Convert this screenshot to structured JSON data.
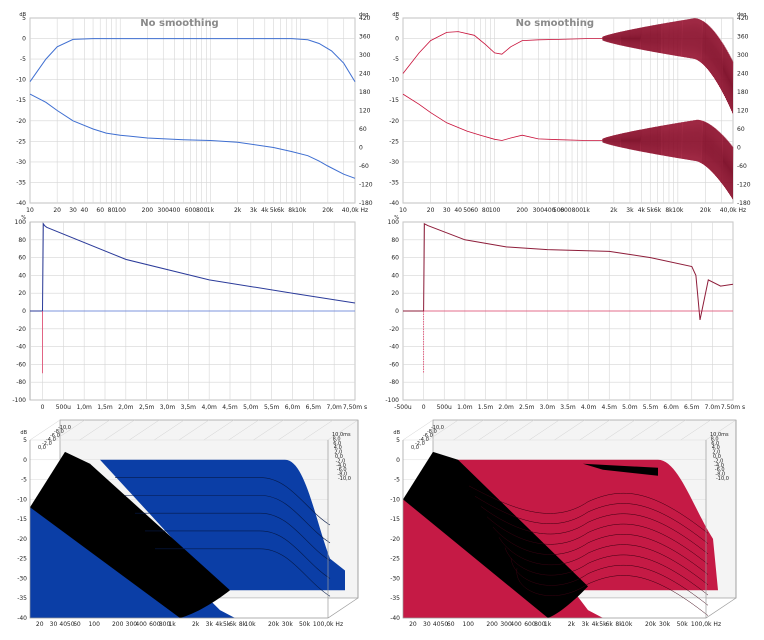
{
  "chart_data": [
    {
      "type": "line",
      "title": "No smoothing",
      "y_unit": "dB",
      "y2_unit": "deg",
      "x_axis_suffix": "Hz",
      "ylim": [
        -40,
        5
      ],
      "y2lim": [
        -180,
        420
      ],
      "x_scale": "log",
      "grid": true,
      "x_ticks": [
        "10",
        "20",
        "30",
        "40",
        "60",
        "80",
        "100",
        "200",
        "300",
        "400",
        "600",
        "800",
        "1k",
        "2k",
        "3k",
        "4k",
        "5k",
        "6k",
        "8k",
        "10k",
        "20k",
        "40,0k"
      ],
      "y_ticks": [
        "5",
        "0",
        "-5",
        "-10",
        "-15",
        "-20",
        "-25",
        "-30",
        "-35",
        "-40"
      ],
      "y2_ticks": [
        "420",
        "360",
        "300",
        "240",
        "180",
        "120",
        "60",
        "0",
        "-60",
        "-120",
        "-180"
      ],
      "color": "#3f6fd1",
      "series": [
        {
          "x": [
            10,
            15,
            20,
            30,
            50,
            100,
            1000,
            8000,
            12000,
            16000,
            22000,
            30000,
            40000
          ],
          "y": [
            -10.5,
            -5,
            -2,
            -0.2,
            0,
            0,
            0,
            0,
            -0.3,
            -1.2,
            -3,
            -6,
            -10.5
          ]
        },
        {
          "x": [
            10,
            15,
            20,
            30,
            50,
            70,
            100,
            200,
            500,
            1000,
            2000,
            5000,
            8000,
            12000,
            16000,
            20000,
            30000,
            40000
          ],
          "y": [
            -13.5,
            -15.5,
            -17.5,
            -20,
            -22,
            -23,
            -23.5,
            -24.2,
            -24.6,
            -24.8,
            -25.2,
            -26.5,
            -27.5,
            -28.5,
            -29.8,
            -31,
            -33,
            -34
          ]
        }
      ]
    },
    {
      "type": "line",
      "title": "No smoothing",
      "y_unit": "dB",
      "y2_unit": "deg",
      "x_axis_suffix": "Hz",
      "ylim": [
        -40,
        5
      ],
      "y2lim": [
        -180,
        420
      ],
      "x_scale": "log",
      "grid": true,
      "x_ticks": [
        "10",
        "20",
        "30",
        "40",
        "50",
        "60",
        "80",
        "100",
        "200",
        "300",
        "400",
        "500",
        "600",
        "800",
        "1k",
        "2k",
        "3k",
        "4k",
        "5k",
        "6k",
        "8k",
        "10k",
        "20k",
        "40,0k"
      ],
      "y_ticks": [
        "5",
        "0",
        "-5",
        "-10",
        "-15",
        "-20",
        "-25",
        "-30",
        "-35",
        "-40"
      ],
      "y2_ticks": [
        "420",
        "360",
        "300",
        "240",
        "180",
        "120",
        "60",
        "0",
        "-60",
        "-120",
        "-180"
      ],
      "color": "#c8113a",
      "series": [
        {
          "x": [
            10,
            15,
            20,
            30,
            40,
            60,
            80,
            100,
            120,
            150,
            200,
            300,
            500,
            1000,
            1500
          ],
          "y": [
            -8.5,
            -3.5,
            -0.5,
            1.5,
            1.7,
            0.8,
            -1.5,
            -3.5,
            -3.8,
            -2,
            -0.5,
            -0.3,
            -0.2,
            0,
            0
          ]
        },
        {
          "x": [
            10,
            15,
            20,
            30,
            50,
            70,
            100,
            120,
            150,
            200,
            300,
            500,
            1000,
            1500
          ],
          "y": [
            -13.5,
            -16,
            -18,
            -20.5,
            -22.5,
            -23.5,
            -24.5,
            -24.8,
            -24.2,
            -23.5,
            -24.4,
            -24.6,
            -24.8,
            -24.8
          ]
        }
      ]
    },
    {
      "type": "line",
      "title": "",
      "y_unit": "%",
      "ylim": [
        -100,
        100
      ],
      "grid": true,
      "x_ticks": [
        "0",
        "500u",
        "1,0m",
        "1,5m",
        "2,0m",
        "2,5m",
        "3,0m",
        "3,5m",
        "4,0m",
        "4,5m",
        "5,0m",
        "5,5m",
        "6,0m",
        "6,5m",
        "7,0m",
        "7,50m s"
      ],
      "y_ticks": [
        "100",
        "80",
        "60",
        "40",
        "20",
        "0",
        "-20",
        "-40",
        "-60",
        "-80",
        "-100"
      ],
      "color": "#2b3b9a",
      "series": [
        {
          "x": [
            -0.0003,
            0,
            2e-05,
            5e-05,
            0.0001,
            0.002,
            0.004,
            0.006,
            0.0075
          ],
          "y": [
            0,
            0,
            98,
            96,
            94,
            58,
            35,
            20,
            9
          ]
        }
      ]
    },
    {
      "type": "line",
      "title": "",
      "y_unit": "%",
      "ylim": [
        -100,
        100
      ],
      "grid": true,
      "x_ticks": [
        "-500u",
        "0",
        "500u",
        "1.0m",
        "1.5m",
        "2.0m",
        "2.5m",
        "3.0m",
        "3.5m",
        "4.0m",
        "4.5m",
        "5.0m",
        "5.5m",
        "6.0m",
        "6.5m",
        "7.0m",
        "7.50m s"
      ],
      "y_ticks": [
        "100",
        "80",
        "60",
        "40",
        "20",
        "0",
        "-20",
        "-40",
        "-60",
        "-80",
        "-100"
      ],
      "color": "#8e1d3a",
      "series": [
        {
          "x": [
            -0.0005,
            0,
            2e-05,
            0.0001,
            0.001,
            0.002,
            0.003,
            0.0045,
            0.0055,
            0.0065,
            0.0066,
            0.0067,
            0.0069,
            0.0072,
            0.0075
          ],
          "y": [
            0,
            0,
            98,
            96,
            80,
            72,
            69,
            67,
            60,
            50,
            40,
            -10,
            35,
            28,
            30
          ]
        }
      ]
    },
    {
      "type": "area",
      "title": "",
      "y_unit": "dB",
      "x_axis_suffix": "Hz",
      "ylim": [
        -40,
        5
      ],
      "grid": true,
      "x_ticks": [
        "20",
        "30",
        "40",
        "50",
        "60",
        "100",
        "200",
        "300",
        "400",
        "600",
        "800",
        "1k",
        "2k",
        "3k",
        "4k",
        "5k",
        "6k",
        "8k",
        "10k",
        "20k",
        "30k",
        "50k",
        "100,0k"
      ],
      "y_ticks": [
        "5",
        "0",
        "-5",
        "-10",
        "-15",
        "-20",
        "-25",
        "-30",
        "-35",
        "-40"
      ],
      "time_ticks": [
        "10,0ms",
        "8,0",
        "6,0",
        "4,0",
        "2,0",
        "0,0",
        "-2,0",
        "-4,0",
        "-6,0",
        "-8,0",
        "-10,0"
      ],
      "color": "#0b3ea6"
    },
    {
      "type": "area",
      "title": "",
      "y_unit": "dB",
      "x_axis_suffix": "Hz",
      "ylim": [
        -40,
        5
      ],
      "grid": true,
      "x_ticks": [
        "20",
        "30",
        "40",
        "50",
        "60",
        "100",
        "200",
        "300",
        "400",
        "600",
        "800",
        "1k",
        "2k",
        "3k",
        "4k",
        "5k",
        "6k",
        "8k",
        "10k",
        "20k",
        "30k",
        "50k",
        "100,0k"
      ],
      "y_ticks": [
        "5",
        "0",
        "-5",
        "-10",
        "-15",
        "-20",
        "-25",
        "-30",
        "-35",
        "-40"
      ],
      "time_ticks": [
        "10,0ms",
        "8,0",
        "6,0",
        "4,0",
        "2,0",
        "0,0",
        "-2,0",
        "-4,0",
        "-6,0",
        "-8,0",
        "-10,0"
      ],
      "color": "#c51a45"
    }
  ]
}
